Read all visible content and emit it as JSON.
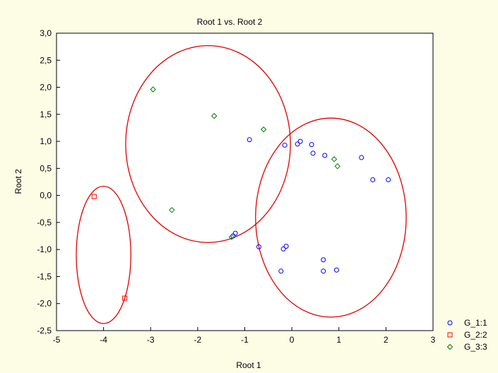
{
  "chart_data": {
    "type": "scatter",
    "title": "Root 1 vs. Root 2",
    "xlabel": "Root 1",
    "ylabel": "Root 2",
    "xlim": [
      -5,
      3
    ],
    "ylim": [
      -2.5,
      3.0
    ],
    "x_ticks": [
      "-5",
      "-4",
      "-3",
      "-2",
      "-1",
      "0",
      "1",
      "2",
      "3"
    ],
    "y_ticks": [
      "3,0",
      "2,5",
      "2,0",
      "1,5",
      "1,0",
      "0,5",
      "0,0",
      "-0,5",
      "-1,0",
      "-1,5",
      "-2,0",
      "-2,5"
    ],
    "grid": false,
    "legend_position": "bottom-right-outside",
    "series": [
      {
        "name": "G_1:1",
        "marker": "circle",
        "color": "#0000ff",
        "points": [
          [
            -0.9,
            1.03
          ],
          [
            -0.15,
            0.93
          ],
          [
            0.12,
            0.95
          ],
          [
            0.18,
            1.0
          ],
          [
            0.42,
            0.94
          ],
          [
            0.45,
            0.78
          ],
          [
            0.7,
            0.74
          ],
          [
            1.48,
            0.7
          ],
          [
            1.72,
            0.29
          ],
          [
            2.05,
            0.29
          ],
          [
            -1.2,
            -0.7
          ],
          [
            -1.25,
            -0.75
          ],
          [
            -0.7,
            -0.95
          ],
          [
            -0.18,
            -0.99
          ],
          [
            -0.12,
            -0.94
          ],
          [
            -0.23,
            -1.4
          ],
          [
            0.67,
            -1.19
          ],
          [
            0.67,
            -1.4
          ],
          [
            0.95,
            -1.38
          ]
        ]
      },
      {
        "name": "G_2:2",
        "marker": "square",
        "color": "#ff0000",
        "points": [
          [
            -4.2,
            -0.02
          ],
          [
            -3.55,
            -1.9
          ]
        ]
      },
      {
        "name": "G_3:3",
        "marker": "diamond",
        "color": "#008000",
        "points": [
          [
            -2.95,
            1.96
          ],
          [
            -1.65,
            1.47
          ],
          [
            -0.6,
            1.22
          ],
          [
            -2.55,
            -0.27
          ],
          [
            -1.28,
            -0.77
          ],
          [
            0.9,
            0.67
          ],
          [
            0.97,
            0.54
          ]
        ]
      }
    ],
    "ellipses": [
      {
        "group": "G_2:2",
        "color": "#e00000",
        "cx": -4.0,
        "cy": -1.1,
        "rx": 0.58,
        "ry": 1.27
      },
      {
        "group": "G_3:3",
        "color": "#e00000",
        "cx": -1.78,
        "cy": 0.95,
        "rx": 1.75,
        "ry": 1.82
      },
      {
        "group": "G_1:1",
        "color": "#e00000",
        "cx": 0.83,
        "cy": -0.41,
        "rx": 1.6,
        "ry": 1.84
      }
    ]
  }
}
